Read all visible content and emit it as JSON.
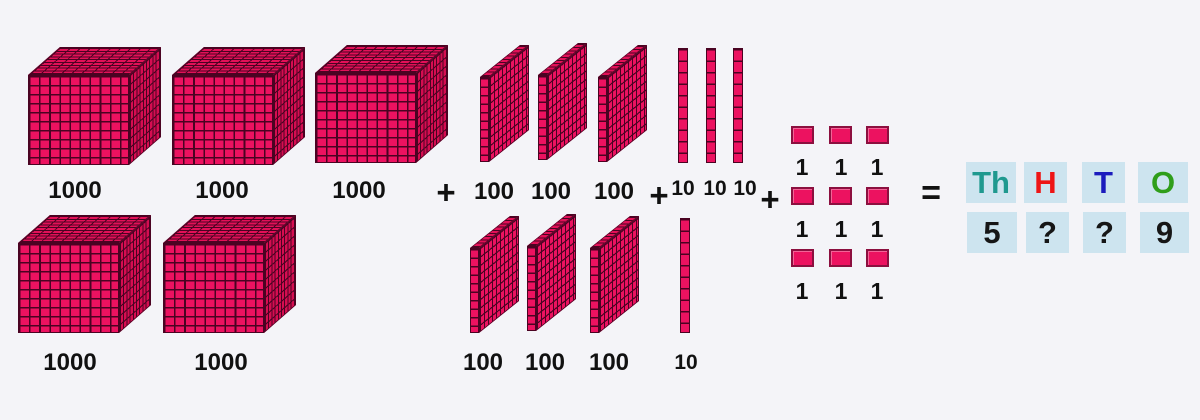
{
  "equation": {
    "plus": "+",
    "equals": "=",
    "thousands": {
      "unit_label": "1000",
      "count": 5
    },
    "hundreds": {
      "unit_label": "100",
      "count": 6
    },
    "tens": {
      "unit_label": "10",
      "count": 4
    },
    "ones": {
      "unit_label": "1",
      "count": 9,
      "grid_rows": 3,
      "grid_cols": 3
    }
  },
  "place_value_table": {
    "headers": [
      {
        "label": "Th",
        "color": "#1f998f"
      },
      {
        "label": "H",
        "color": "#ee1515"
      },
      {
        "label": "T",
        "color": "#1c1cbd"
      },
      {
        "label": "O",
        "color": "#2f9e1a"
      }
    ],
    "values": [
      "5",
      "?",
      "?",
      "9"
    ],
    "cell_bg": "#cde4ef"
  },
  "block_colors": {
    "face": "#ec1260",
    "grid_line": "#4a0322",
    "top": "#e31058",
    "side": "#d60d51",
    "unit_border": "#8c0f3f"
  },
  "background": "#f4f4f8"
}
